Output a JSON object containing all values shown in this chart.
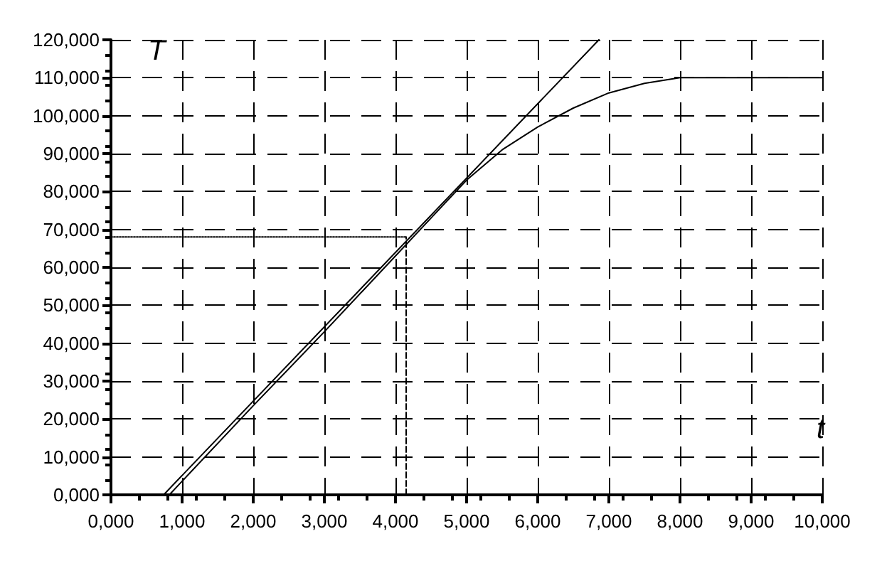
{
  "chart_data": {
    "type": "line",
    "xlabel": "t",
    "ylabel": "T",
    "xlim": [
      0,
      10
    ],
    "ylim": [
      0,
      120
    ],
    "xticks": [
      {
        "value": 0,
        "label": "0,000"
      },
      {
        "value": 1,
        "label": "1,000"
      },
      {
        "value": 2,
        "label": "2,000"
      },
      {
        "value": 3,
        "label": "3,000"
      },
      {
        "value": 4,
        "label": "4,000"
      },
      {
        "value": 5,
        "label": "5,000"
      },
      {
        "value": 6,
        "label": "6,000"
      },
      {
        "value": 7,
        "label": "7,000"
      },
      {
        "value": 8,
        "label": "8,000"
      },
      {
        "value": 9,
        "label": "9,000"
      },
      {
        "value": 10,
        "label": "10,000"
      }
    ],
    "yticks": [
      {
        "value": 0,
        "label": "0,000"
      },
      {
        "value": 10,
        "label": "10,000"
      },
      {
        "value": 20,
        "label": "20,000"
      },
      {
        "value": 30,
        "label": "30,000"
      },
      {
        "value": 40,
        "label": "40,000"
      },
      {
        "value": 50,
        "label": "50,000"
      },
      {
        "value": 60,
        "label": "60,000"
      },
      {
        "value": 70,
        "label": "70,000"
      },
      {
        "value": 80,
        "label": "80,000"
      },
      {
        "value": 90,
        "label": "90,000"
      },
      {
        "value": 100,
        "label": "100,000"
      },
      {
        "value": 110,
        "label": "110,000"
      },
      {
        "value": 120,
        "label": "120,000"
      }
    ],
    "grid": true,
    "marker": "none",
    "series": [
      {
        "color": "#000000",
        "line_style": "solid",
        "x": [
          0.82,
          2,
          3,
          4,
          4.5,
          5,
          5.5,
          6,
          6.5,
          7,
          7.5,
          8,
          10
        ],
        "values": [
          0,
          23.5,
          43,
          63,
          73,
          83,
          91,
          97,
          102,
          106,
          108.5,
          110,
          110
        ]
      },
      {
        "color": "#000000",
        "line_style": "solid",
        "x": [
          0.74,
          6.86
        ],
        "values": [
          0,
          120
        ]
      },
      {
        "color": "#000000",
        "line_style": "dotted",
        "x": [
          0,
          4.15
        ],
        "values": [
          68,
          68
        ]
      },
      {
        "color": "#000000",
        "line_style": "dashed",
        "x": [
          4.15,
          4.15
        ],
        "values": [
          0,
          68
        ]
      }
    ]
  }
}
